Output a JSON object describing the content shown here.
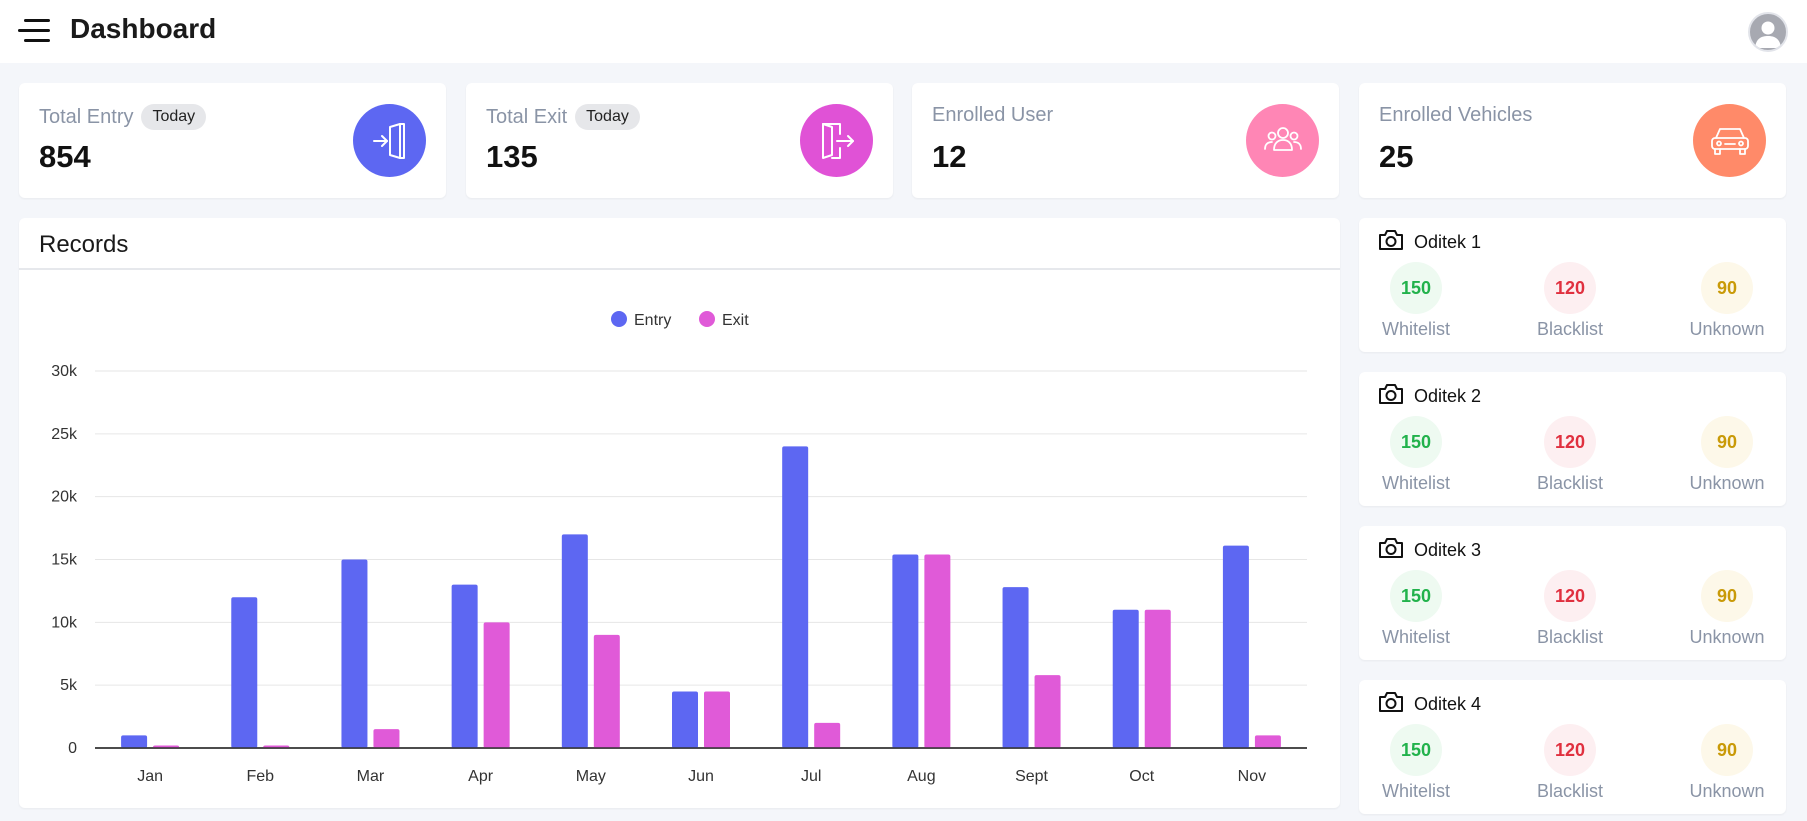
{
  "header": {
    "title": "Dashboard",
    "menu_icon": "hamburger-menu-icon",
    "avatar_icon": "user-avatar-icon"
  },
  "stats": [
    {
      "title": "Total Entry",
      "badge": "Today",
      "value": "854",
      "icon": "entry-door-icon",
      "color": "#5d67f2"
    },
    {
      "title": "Total Exit",
      "badge": "Today",
      "value": "135",
      "icon": "exit-door-icon",
      "color": "#e052d6"
    },
    {
      "title": "Enrolled User",
      "value": "12",
      "icon": "users-group-icon",
      "color": "#ff86b5"
    },
    {
      "title": "Enrolled Vehicles",
      "value": "25",
      "icon": "car-icon",
      "color": "#ff8a69"
    }
  ],
  "records": {
    "title": "Records",
    "chart_data": {
      "type": "bar",
      "categories": [
        "Jan",
        "Feb",
        "Mar",
        "Apr",
        "May",
        "Jun",
        "Jul",
        "Aug",
        "Sept",
        "Oct",
        "Nov"
      ],
      "series": [
        {
          "name": "Entry",
          "color": "#5d67f2",
          "values": [
            1000,
            12000,
            15000,
            13000,
            17000,
            4500,
            24000,
            15400,
            12800,
            11000,
            16100
          ]
        },
        {
          "name": "Exit",
          "color": "#e05ad8",
          "values": [
            200,
            200,
            1500,
            10000,
            9000,
            4500,
            2000,
            15400,
            5800,
            11000,
            1000
          ]
        }
      ],
      "yticks": [
        "0",
        "5k",
        "10k",
        "15k",
        "20k",
        "25k",
        "30k"
      ],
      "ylim": [
        0,
        30000
      ],
      "legend_position": "top-center",
      "grid": true
    }
  },
  "cameras": [
    {
      "name": "Oditek 1",
      "whitelist": "150",
      "blacklist": "120",
      "unknown": "90"
    },
    {
      "name": "Oditek 2",
      "whitelist": "150",
      "blacklist": "120",
      "unknown": "90"
    },
    {
      "name": "Oditek 3",
      "whitelist": "150",
      "blacklist": "120",
      "unknown": "90"
    },
    {
      "name": "Oditek 4",
      "whitelist": "150",
      "blacklist": "120",
      "unknown": "90"
    }
  ],
  "camera_labels": {
    "whitelist": "Whitelist",
    "blacklist": "Blacklist",
    "unknown": "Unknown"
  },
  "status_colors": {
    "whitelist": "#22b24c",
    "whitelist_bg": "#eefaf1",
    "blacklist": "#e0303f",
    "blacklist_bg": "#fdeff1",
    "unknown": "#c99a08",
    "unknown_bg": "#fdf8e9"
  }
}
